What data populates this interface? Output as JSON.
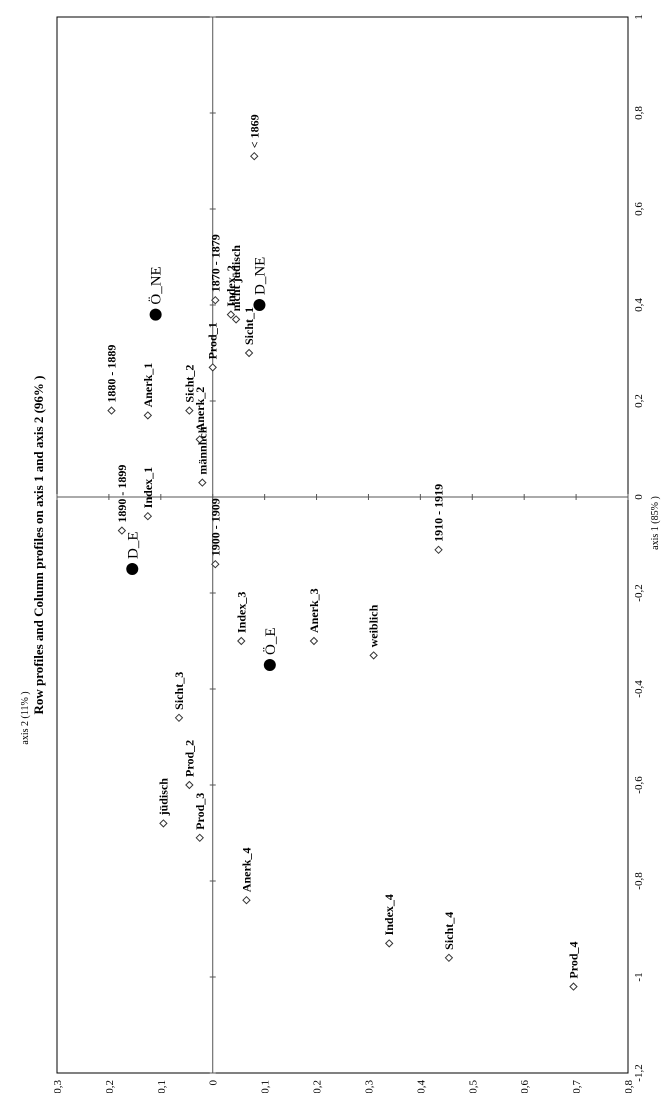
{
  "chart_data": {
    "type": "scatter",
    "title": "Row profiles and Column profiles on axis 1 and axis 2 (96% )",
    "xlabel": "axis 1 (85% )",
    "ylabel": "axis 2 (11% )",
    "xlim": [
      -1.2,
      1
    ],
    "ylim": [
      -0.8,
      0.3
    ],
    "x_ticks": [
      "-1,2",
      "-1",
      "-0,8",
      "-0,6",
      "-0,4",
      "-0,2",
      "0",
      "0,2",
      "0,4",
      "0,6",
      "0,8",
      "1"
    ],
    "y_ticks": [
      "0,3",
      "0,2",
      "0,1",
      "0",
      "-0,1",
      "-0,2",
      "-0,3",
      "-0,4",
      "-0,5",
      "-0,6",
      "-0,7",
      "-0,8"
    ],
    "grid": false,
    "orientation": "rotated 90 degrees counter-clockwise",
    "series": [
      {
        "marker": "diamond",
        "points": [
          {
            "label": "< 1869",
            "x": 0.71,
            "y": -0.08
          },
          {
            "label": "1870 - 1879",
            "x": 0.41,
            "y": -0.005
          },
          {
            "label": "1880 - 1889",
            "x": 0.18,
            "y": 0.195
          },
          {
            "label": "1890 - 1899",
            "x": -0.07,
            "y": 0.175
          },
          {
            "label": "1900 - 1909",
            "x": -0.14,
            "y": -0.005
          },
          {
            "label": "1910 - 1919",
            "x": -0.11,
            "y": -0.435
          },
          {
            "label": "männlich",
            "x": 0.03,
            "y": 0.02
          },
          {
            "label": "weiblich",
            "x": -0.33,
            "y": -0.31
          },
          {
            "label": "jüdisch",
            "x": -0.68,
            "y": 0.095
          },
          {
            "label": "nicht jüdisch",
            "x": 0.37,
            "y": -0.045
          },
          {
            "label": "Anerk_1",
            "x": 0.17,
            "y": 0.125
          },
          {
            "label": "Anerk_2",
            "x": 0.12,
            "y": 0.025
          },
          {
            "label": "Anerk_3",
            "x": -0.3,
            "y": -0.195
          },
          {
            "label": "Anerk_4",
            "x": -0.84,
            "y": -0.065
          },
          {
            "label": "Index_1",
            "x": -0.04,
            "y": 0.125
          },
          {
            "label": "Index_2",
            "x": 0.38,
            "y": -0.035
          },
          {
            "label": "Index_3",
            "x": -0.3,
            "y": -0.055
          },
          {
            "label": "Index_4",
            "x": -0.93,
            "y": -0.34
          },
          {
            "label": "Sicht_1",
            "x": 0.3,
            "y": -0.07
          },
          {
            "label": "Sicht_2",
            "x": 0.18,
            "y": 0.045
          },
          {
            "label": "Sicht_3",
            "x": -0.46,
            "y": 0.065
          },
          {
            "label": "Sicht_4",
            "x": -0.96,
            "y": -0.455
          },
          {
            "label": "Prod_1",
            "x": 0.27,
            "y": 0.0
          },
          {
            "label": "Prod_2",
            "x": -0.6,
            "y": 0.045
          },
          {
            "label": "Prod_3",
            "x": -0.71,
            "y": 0.025
          },
          {
            "label": "Prod_4",
            "x": -1.02,
            "y": -0.695
          }
        ]
      },
      {
        "marker": "filled-circle",
        "points": [
          {
            "label": "Ö_NE",
            "x": 0.38,
            "y": 0.11
          },
          {
            "label": "D_NE",
            "x": 0.4,
            "y": -0.09
          },
          {
            "label": "D_E",
            "x": -0.15,
            "y": 0.155
          },
          {
            "label": "Ö_E",
            "x": -0.35,
            "y": -0.11
          }
        ]
      }
    ]
  }
}
